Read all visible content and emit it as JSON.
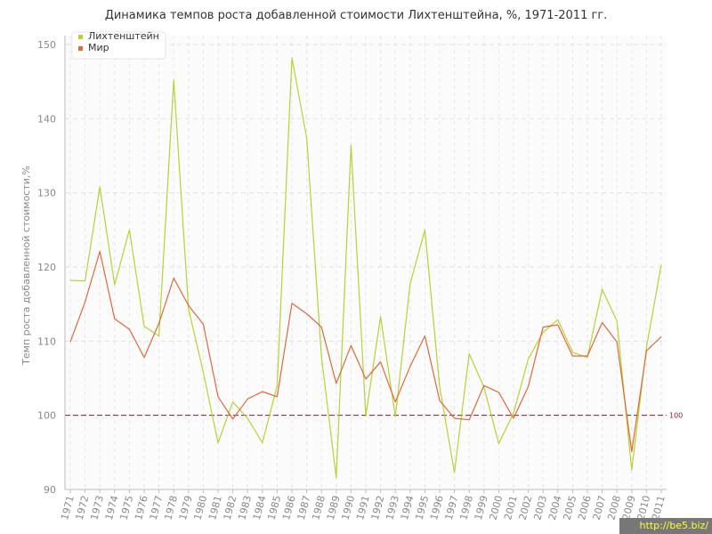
{
  "chart_data": {
    "type": "line",
    "title": "Динамика темпов роста добавленной стоимости Лихтенштейна, %, 1971-2011 гг.",
    "xlabel": "",
    "ylabel": "Темп роста добавленной стоимости,%",
    "ylim": [
      90,
      150
    ],
    "yticks": [
      90,
      100,
      110,
      120,
      130,
      140,
      150
    ],
    "x": [
      1971,
      1972,
      1973,
      1974,
      1975,
      1976,
      1977,
      1978,
      1979,
      1980,
      1981,
      1982,
      1983,
      1984,
      1985,
      1986,
      1987,
      1988,
      1989,
      1990,
      1991,
      1992,
      1993,
      1994,
      1995,
      1996,
      1997,
      1998,
      1999,
      2000,
      2001,
      2002,
      2003,
      2004,
      2005,
      2006,
      2007,
      2008,
      2009,
      2010,
      2011
    ],
    "grid": true,
    "legend_position": "top-left",
    "reference_line": {
      "value": 100,
      "label": "100",
      "color": "#8b1a3a"
    },
    "series": [
      {
        "name": "Лихтенштейн",
        "color": "#b5d334",
        "values": [
          118.2,
          118.1,
          130.8,
          117.6,
          125.0,
          112.0,
          110.7,
          145.2,
          114.4,
          105.8,
          96.3,
          101.8,
          99.6,
          96.3,
          104.0,
          148.2,
          137.4,
          107.9,
          91.6,
          136.4,
          99.9,
          113.3,
          99.8,
          117.7,
          125.0,
          103.9,
          92.3,
          108.3,
          103.8,
          96.2,
          100.3,
          107.6,
          111.2,
          112.9,
          108.5,
          107.8,
          117.0,
          112.7,
          92.6,
          109.2,
          120.3
        ]
      },
      {
        "name": "Мир",
        "color": "#e0693c",
        "values": [
          109.9,
          115.3,
          122.1,
          113.0,
          111.6,
          107.8,
          112.4,
          118.5,
          114.8,
          112.3,
          102.5,
          99.5,
          102.2,
          103.2,
          102.5,
          115.1,
          113.7,
          111.9,
          104.3,
          109.4,
          104.9,
          107.2,
          101.8,
          106.6,
          110.7,
          102.0,
          99.6,
          99.4,
          104.0,
          103.1,
          99.6,
          103.9,
          111.9,
          112.2,
          108.0,
          108.0,
          112.5,
          109.9,
          95.1,
          108.7,
          110.6
        ]
      }
    ]
  },
  "watermark": "http://be5.biz/"
}
